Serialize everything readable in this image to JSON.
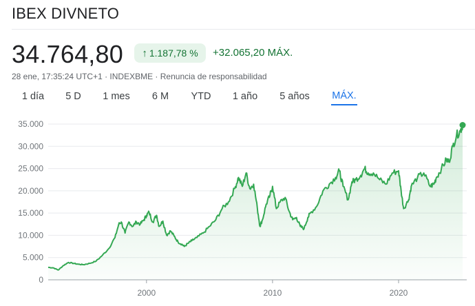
{
  "header": {
    "title": "IBEX DIVNETO",
    "price": "34.764,80",
    "change_badge": "1.187,78 %",
    "change_value": "+32.065,20 MÁX.",
    "meta": "28 ene, 17:35:24 UTC+1 · INDEXBME · Renuncia de responsabilidad"
  },
  "tabs": [
    {
      "label": "1 día"
    },
    {
      "label": "5 D"
    },
    {
      "label": "1 mes"
    },
    {
      "label": "6 M"
    },
    {
      "label": "YTD"
    },
    {
      "label": "1 año"
    },
    {
      "label": "5 años"
    },
    {
      "label": "MÁX."
    }
  ],
  "colors": {
    "positive": "#137333",
    "positive_bg": "#e6f4ea",
    "line": "#34a853",
    "active_tab": "#1a73e8"
  },
  "chart_data": {
    "type": "area",
    "title": "IBEX DIVNETO",
    "xlabel": "",
    "ylabel": "",
    "xlim": [
      1992.2,
      2025.08
    ],
    "ylim": [
      0,
      35000
    ],
    "x_ticks": [
      {
        "label": "2000",
        "value": 2000
      },
      {
        "label": "2010",
        "value": 2010
      },
      {
        "label": "2020",
        "value": 2020
      }
    ],
    "y_ticks": [
      {
        "label": "0",
        "value": 0
      },
      {
        "label": "5.000",
        "value": 5000
      },
      {
        "label": "10.000",
        "value": 10000
      },
      {
        "label": "15.000",
        "value": 15000
      },
      {
        "label": "20.000",
        "value": 20000
      },
      {
        "label": "25.000",
        "value": 25000
      },
      {
        "label": "30.000",
        "value": 30000
      },
      {
        "label": "35.000",
        "value": 35000
      }
    ],
    "grid": true,
    "series": [
      {
        "name": "IBEX DIVNETO",
        "x": [
          1992.2,
          1992.6,
          1993.0,
          1993.4,
          1993.8,
          1994.2,
          1994.6,
          1995.0,
          1995.5,
          1996.0,
          1996.5,
          1997.0,
          1997.5,
          1997.8,
          1998.0,
          1998.3,
          1998.6,
          1998.9,
          1999.2,
          1999.5,
          1999.8,
          2000.0,
          2000.2,
          2000.5,
          2000.8,
          2001.0,
          2001.3,
          2001.6,
          2001.9,
          2002.2,
          2002.5,
          2002.8,
          2003.0,
          2003.3,
          2003.6,
          2004.0,
          2004.5,
          2005.0,
          2005.5,
          2006.0,
          2006.5,
          2007.0,
          2007.3,
          2007.6,
          2007.9,
          2008.2,
          2008.5,
          2008.8,
          2009.0,
          2009.2,
          2009.5,
          2009.8,
          2010.0,
          2010.3,
          2010.6,
          2011.0,
          2011.3,
          2011.6,
          2011.9,
          2012.2,
          2012.5,
          2012.8,
          2013.0,
          2013.5,
          2014.0,
          2014.5,
          2015.0,
          2015.3,
          2015.6,
          2016.0,
          2016.3,
          2016.6,
          2017.0,
          2017.3,
          2017.6,
          2018.0,
          2018.5,
          2019.0,
          2019.5,
          2020.0,
          2020.2,
          2020.4,
          2020.8,
          2021.0,
          2021.5,
          2022.0,
          2022.5,
          2022.8,
          2023.0,
          2023.4,
          2023.8,
          2024.0,
          2024.3,
          2024.6,
          2024.9,
          2025.08
        ],
        "values": [
          2800,
          2700,
          2200,
          3200,
          3900,
          3700,
          3500,
          3400,
          3700,
          4200,
          5500,
          7000,
          9500,
          12500,
          13000,
          10500,
          13000,
          12000,
          13000,
          12500,
          13500,
          14500,
          15200,
          13000,
          14500,
          12000,
          13200,
          10000,
          11000,
          9800,
          8500,
          8000,
          7500,
          8200,
          8800,
          9500,
          10500,
          12000,
          13500,
          16000,
          17500,
          20500,
          23000,
          21000,
          24000,
          20500,
          21500,
          16000,
          12000,
          13500,
          17000,
          19000,
          21000,
          16000,
          17500,
          18500,
          15500,
          13500,
          14000,
          12000,
          11500,
          14000,
          15000,
          16500,
          20000,
          21500,
          23000,
          24500,
          21000,
          18000,
          22000,
          22500,
          23500,
          25000,
          24000,
          24000,
          22500,
          21500,
          24000,
          24500,
          20000,
          16000,
          18000,
          21000,
          23000,
          24000,
          21000,
          21500,
          23000,
          25000,
          27000,
          26500,
          30000,
          32500,
          33500,
          34765
        ]
      }
    ],
    "last_point": {
      "x": 2025.08,
      "value": 34765
    }
  }
}
